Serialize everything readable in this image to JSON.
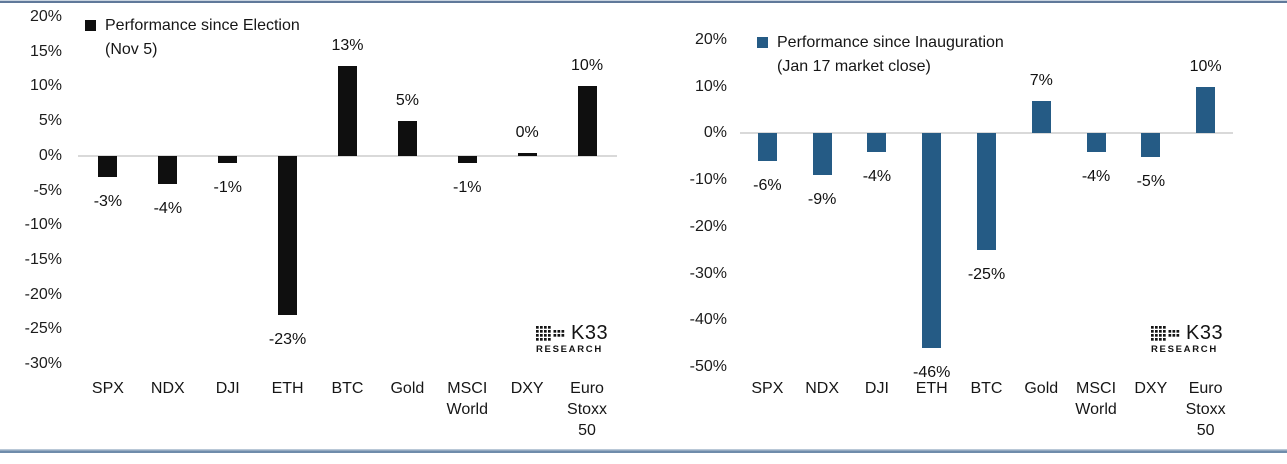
{
  "logo": {
    "name": "K33",
    "sub": "RESEARCH"
  },
  "chart_data": [
    {
      "type": "bar",
      "title": "Performance since Election (Nov 5)",
      "legend": {
        "line1": "Performance since Election",
        "line2": "(Nov 5)",
        "marker_color": "#0f0f0f",
        "position": "top-left"
      },
      "bar_color": "#0f0f0f",
      "ylim": [
        -30,
        20
      ],
      "grid": "zero-line-only",
      "xlabel": "",
      "ylabel": "",
      "yticks": [
        {
          "v": 20,
          "label": "20%"
        },
        {
          "v": 15,
          "label": "15%"
        },
        {
          "v": 10,
          "label": "10%"
        },
        {
          "v": 5,
          "label": "5%"
        },
        {
          "v": 0,
          "label": "0%"
        },
        {
          "v": -5,
          "label": "-5%"
        },
        {
          "v": -10,
          "label": "-10%"
        },
        {
          "v": -15,
          "label": "-15%"
        },
        {
          "v": -20,
          "label": "-20%"
        },
        {
          "v": -25,
          "label": "-25%"
        },
        {
          "v": -30,
          "label": "-30%"
        }
      ],
      "categories": [
        "SPX",
        "NDX",
        "DJI",
        "ETH",
        "BTC",
        "Gold",
        "MSCI World",
        "DXY",
        "Euro Stoxx 50"
      ],
      "category_lines": [
        [
          "SPX"
        ],
        [
          "NDX"
        ],
        [
          "DJI"
        ],
        [
          "ETH"
        ],
        [
          "BTC"
        ],
        [
          "Gold"
        ],
        [
          "MSCI",
          "World"
        ],
        [
          "DXY"
        ],
        [
          "Euro",
          "Stoxx",
          "50"
        ]
      ],
      "values": [
        -3,
        -4,
        -1,
        -23,
        13,
        5,
        -1,
        0,
        10
      ],
      "value_labels": [
        "-3%",
        "-4%",
        "-1%",
        "-23%",
        "13%",
        "5%",
        "-1%",
        "0%",
        "10%"
      ]
    },
    {
      "type": "bar",
      "title": "Performance since Inauguration (Jan 17 market close)",
      "legend": {
        "line1": "Performance since Inauguration",
        "line2": "(Jan 17 market close)",
        "marker_color": "#255b85",
        "position": "top-left"
      },
      "bar_color": "#255b85",
      "ylim": [
        -50,
        20
      ],
      "grid": "zero-line-only",
      "xlabel": "",
      "ylabel": "",
      "yticks": [
        {
          "v": 20,
          "label": "20%"
        },
        {
          "v": 10,
          "label": "10%"
        },
        {
          "v": 0,
          "label": "0%"
        },
        {
          "v": -10,
          "label": "-10%"
        },
        {
          "v": -20,
          "label": "-20%"
        },
        {
          "v": -30,
          "label": "-30%"
        },
        {
          "v": -40,
          "label": "-40%"
        },
        {
          "v": -50,
          "label": "-50%"
        }
      ],
      "categories": [
        "SPX",
        "NDX",
        "DJI",
        "ETH",
        "BTC",
        "Gold",
        "MSCI World",
        "DXY",
        "Euro Stoxx 50"
      ],
      "category_lines": [
        [
          "SPX"
        ],
        [
          "NDX"
        ],
        [
          "DJI"
        ],
        [
          "ETH"
        ],
        [
          "BTC"
        ],
        [
          "Gold"
        ],
        [
          "MSCI",
          "World"
        ],
        [
          "DXY"
        ],
        [
          "Euro",
          "Stoxx",
          "50"
        ]
      ],
      "values": [
        -6,
        -9,
        -4,
        -46,
        -25,
        7,
        -4,
        -5,
        10
      ],
      "value_labels": [
        "-6%",
        "-9%",
        "-4%",
        "-46%",
        "-25%",
        "7%",
        "-4%",
        "-5%",
        "10%"
      ]
    }
  ]
}
